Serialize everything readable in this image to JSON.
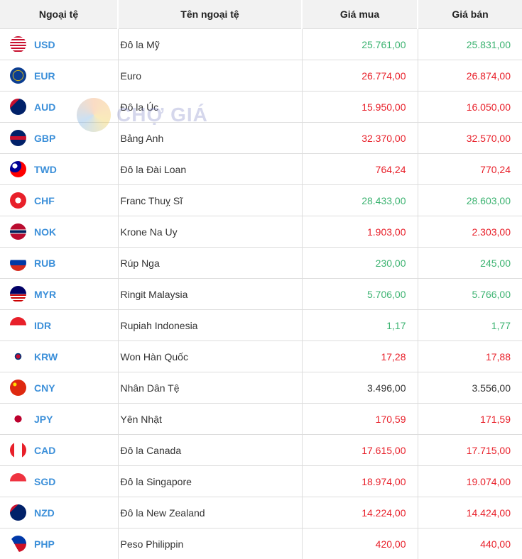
{
  "headers": [
    "Ngoại tệ",
    "Tên ngoại tệ",
    "Giá mua",
    "Giá bán"
  ],
  "watermark": "CHỢ GIÁ",
  "colors": {
    "up": "#3cb371",
    "down": "#e8202a",
    "code": "#3b8fd9"
  },
  "rows": [
    {
      "code": "USD",
      "name": "Đô la Mỹ",
      "buy": "25.761,00",
      "sell": "25.831,00",
      "trend": "up"
    },
    {
      "code": "EUR",
      "name": "Euro",
      "buy": "26.774,00",
      "sell": "26.874,00",
      "trend": "down"
    },
    {
      "code": "AUD",
      "name": "Đô la Úc",
      "buy": "15.950,00",
      "sell": "16.050,00",
      "trend": "down"
    },
    {
      "code": "GBP",
      "name": "Bảng Anh",
      "buy": "32.370,00",
      "sell": "32.570,00",
      "trend": "down"
    },
    {
      "code": "TWD",
      "name": "Đô la Đài Loan",
      "buy": "764,24",
      "sell": "770,24",
      "trend": "down"
    },
    {
      "code": "CHF",
      "name": "Franc Thuỵ Sĩ",
      "buy": "28.433,00",
      "sell": "28.603,00",
      "trend": "up"
    },
    {
      "code": "NOK",
      "name": "Krone Na Uy",
      "buy": "1.903,00",
      "sell": "2.303,00",
      "trend": "down"
    },
    {
      "code": "RUB",
      "name": "Rúp Nga",
      "buy": "230,00",
      "sell": "245,00",
      "trend": "up"
    },
    {
      "code": "MYR",
      "name": "Ringit Malaysia",
      "buy": "5.706,00",
      "sell": "5.766,00",
      "trend": "up"
    },
    {
      "code": "IDR",
      "name": "Rupiah Indonesia",
      "buy": "1,17",
      "sell": "1,77",
      "trend": "up"
    },
    {
      "code": "KRW",
      "name": "Won Hàn Quốc",
      "buy": "17,28",
      "sell": "17,88",
      "trend": "down"
    },
    {
      "code": "CNY",
      "name": "Nhân Dân Tệ",
      "buy": "3.496,00",
      "sell": "3.556,00",
      "trend": "flat"
    },
    {
      "code": "JPY",
      "name": "Yên Nhật",
      "buy": "170,59",
      "sell": "171,59",
      "trend": "down"
    },
    {
      "code": "CAD",
      "name": "Đô la Canada",
      "buy": "17.615,00",
      "sell": "17.715,00",
      "trend": "down"
    },
    {
      "code": "SGD",
      "name": "Đô la Singapore",
      "buy": "18.974,00",
      "sell": "19.074,00",
      "trend": "down"
    },
    {
      "code": "NZD",
      "name": "Đô la New Zealand",
      "buy": "14.224,00",
      "sell": "14.424,00",
      "trend": "down"
    },
    {
      "code": "PHP",
      "name": "Peso Philippin",
      "buy": "420,00",
      "sell": "440,00",
      "trend": "down"
    }
  ]
}
